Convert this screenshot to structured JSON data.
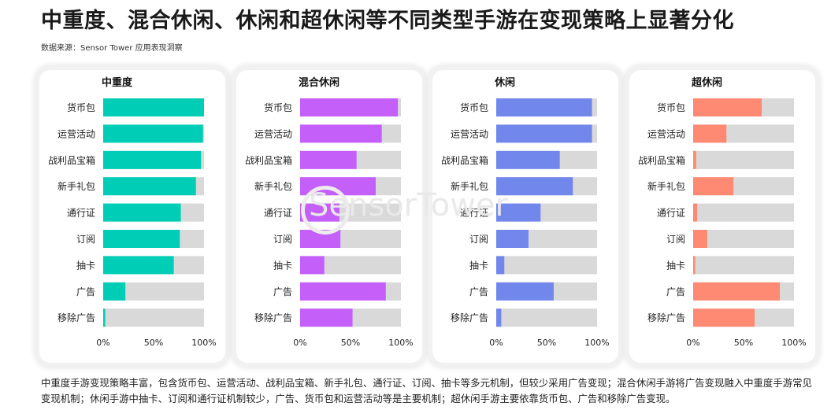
{
  "title": "中重度、混合休闲、休闲和超休闲等不同类型手游在变现策略上显著分化",
  "source": "数据来源：Sensor Tower 应用表现洞察",
  "watermark": "SensorTower",
  "caption": "中重度手游变现策略丰富，包含货币包、运营活动、战利品宝箱、新手礼包、通行证、订阅、抽卡等多元机制，但较少采用广告变现；混合休闲手游将广告变现融入中重度手游常见变现机制；休闲手游中抽卡、订阅和通行证机制较少，广告、货币包和运营活动等是主要机制；超休闲手游主要依靠货币包、广告和移除广告变现。",
  "colors": {
    "track": "#d9d9d9",
    "panel_border": "#f1f1f1"
  },
  "chart_data": [
    {
      "type": "bar",
      "orientation": "horizontal",
      "stacked_to_100": true,
      "title": "中重度",
      "color": "#00cdb5",
      "categories": [
        "货币包",
        "运营活动",
        "战利品宝箱",
        "新手礼包",
        "通行证",
        "订阅",
        "抽卡",
        "广告",
        "移除广告"
      ],
      "values": [
        100,
        99,
        97,
        92,
        77,
        76,
        70,
        22,
        2
      ],
      "xlim": [
        0,
        100
      ],
      "xticks": [
        "0%",
        "50%",
        "100%"
      ]
    },
    {
      "type": "bar",
      "orientation": "horizontal",
      "stacked_to_100": true,
      "title": "混合休闲",
      "color": "#c45ff9",
      "categories": [
        "货币包",
        "运营活动",
        "战利品宝箱",
        "新手礼包",
        "通行证",
        "订阅",
        "抽卡",
        "广告",
        "移除广告"
      ],
      "values": [
        97,
        81,
        56,
        75,
        39,
        40,
        24,
        85,
        52
      ],
      "xlim": [
        0,
        100
      ],
      "xticks": [
        "0%",
        "50%",
        "100%"
      ]
    },
    {
      "type": "bar",
      "orientation": "horizontal",
      "stacked_to_100": true,
      "title": "休闲",
      "color": "#7287ec",
      "categories": [
        "货币包",
        "运营活动",
        "战利品宝箱",
        "新手礼包",
        "通行证",
        "订阅",
        "抽卡",
        "广告",
        "移除广告"
      ],
      "values": [
        95,
        95,
        63,
        76,
        44,
        32,
        8,
        57,
        5
      ],
      "xlim": [
        0,
        100
      ],
      "xticks": [
        "0%",
        "50%",
        "100%"
      ]
    },
    {
      "type": "bar",
      "orientation": "horizontal",
      "stacked_to_100": true,
      "title": "超休闲",
      "color": "#ff8a73",
      "categories": [
        "货币包",
        "运营活动",
        "战利品宝箱",
        "新手礼包",
        "通行证",
        "订阅",
        "抽卡",
        "广告",
        "移除广告"
      ],
      "values": [
        68,
        33,
        3,
        40,
        4,
        14,
        2,
        86,
        61
      ],
      "xlim": [
        0,
        100
      ],
      "xticks": [
        "0%",
        "50%",
        "100%"
      ]
    }
  ]
}
